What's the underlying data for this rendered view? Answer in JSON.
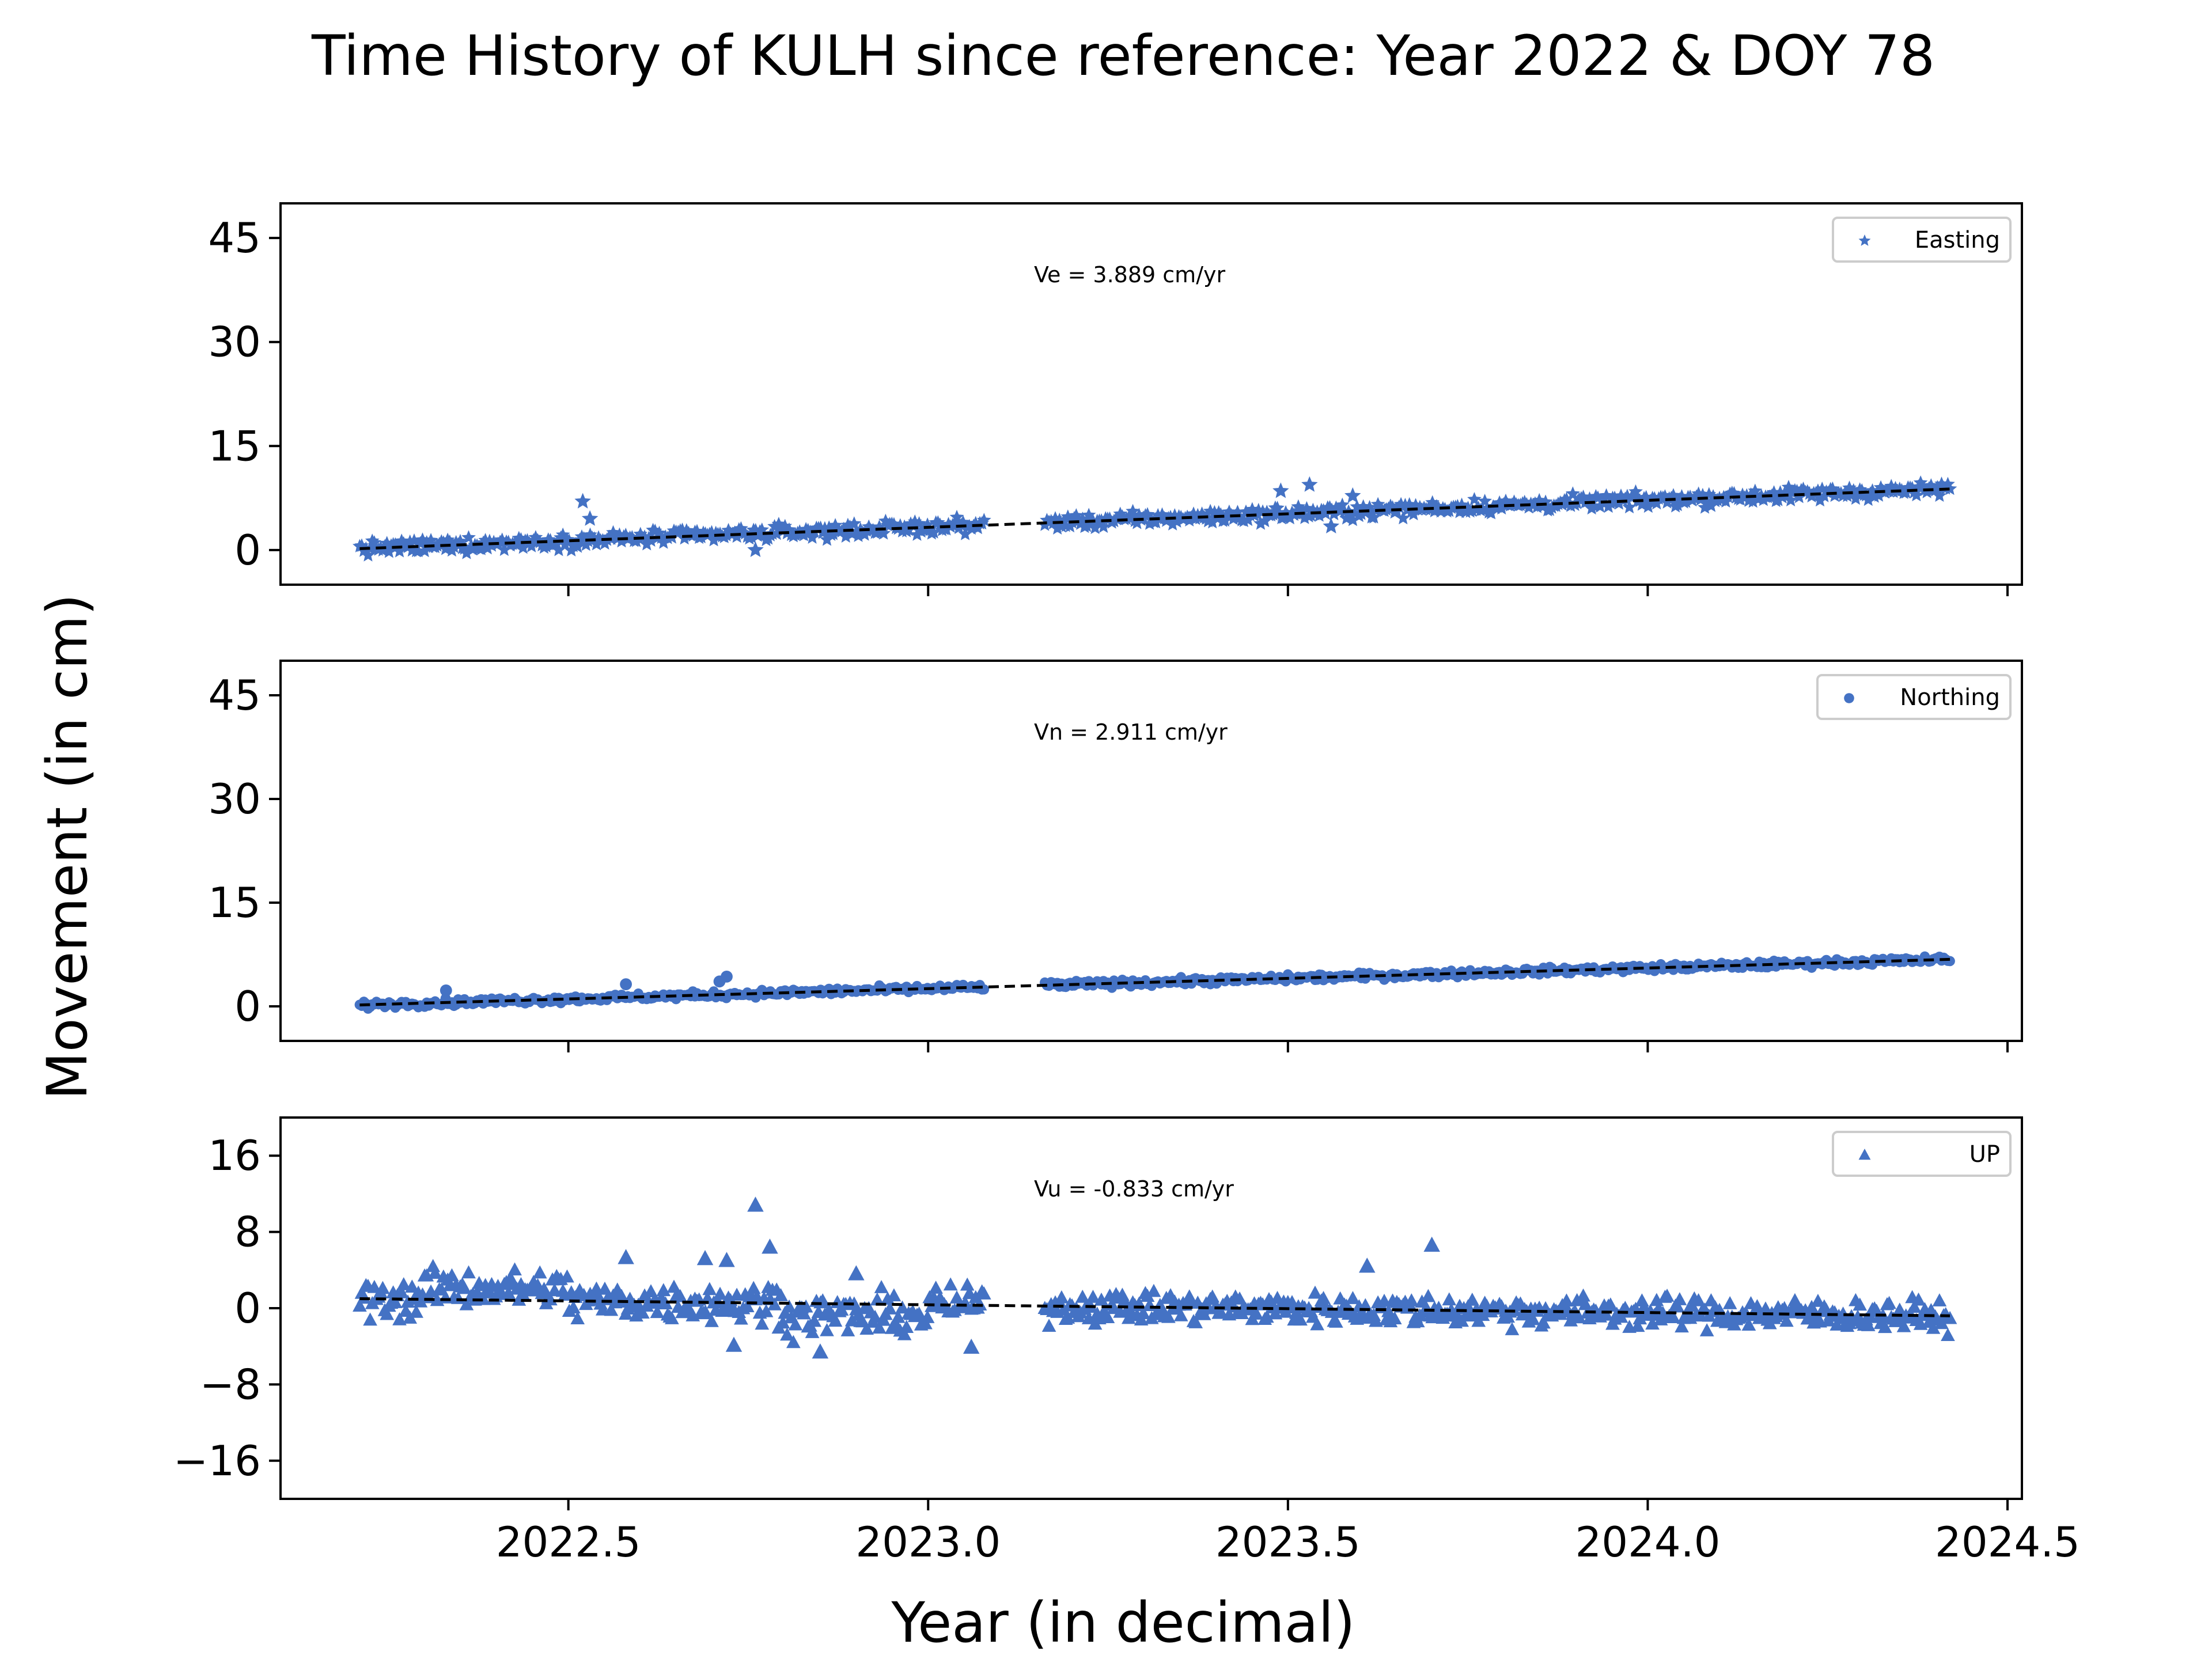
{
  "chart_data": {
    "type": "scatter",
    "title": "Time History of KULH since reference: Year 2022 & DOY 78",
    "xlabel": "Year (in decimal)",
    "ylabel": "Movement (in cm)",
    "xlim": [
      2022.1,
      2024.52
    ],
    "xticks": [
      2022.5,
      2023.0,
      2023.5,
      2024.0,
      2024.5
    ],
    "xtick_labels": [
      "2022.5",
      "2023.0",
      "2023.5",
      "2024.0",
      "2024.5"
    ],
    "grid": false,
    "marker_color": "#4472c4",
    "trend_color": "#000000",
    "data_x_range": [
      2022.21,
      2024.42
    ],
    "gap_x_range": [
      2023.08,
      2023.16
    ],
    "panels": [
      {
        "id": "easting",
        "legend": "Easting",
        "marker": "star",
        "annotation": "Ve =  3.889 cm/yr",
        "ylim": [
          -5,
          50
        ],
        "yticks": [
          0,
          15,
          30,
          45
        ],
        "ytick_labels": [
          "0",
          "15",
          "30",
          "45"
        ],
        "trend": [
          [
            2022.21,
            0.2
          ],
          [
            2024.42,
            8.8
          ]
        ],
        "noise": 1.0,
        "outliers": [
          [
            2022.52,
            7.0
          ],
          [
            2022.53,
            4.5
          ],
          [
            2023.49,
            8.5
          ],
          [
            2023.53,
            9.4
          ],
          [
            2023.59,
            7.8
          ],
          [
            2022.76,
            0.0
          ],
          [
            2023.56,
            3.4
          ]
        ]
      },
      {
        "id": "northing",
        "legend": "Northing",
        "marker": "circle",
        "annotation": "Vn =  2.911 cm/yr",
        "ylim": [
          -5,
          50
        ],
        "yticks": [
          0,
          15,
          30,
          45
        ],
        "ytick_labels": [
          "0",
          "15",
          "30",
          "45"
        ],
        "trend": [
          [
            2022.21,
            0.2
          ],
          [
            2024.42,
            6.8
          ]
        ],
        "noise": 0.5,
        "outliers": [
          [
            2022.72,
            4.3
          ],
          [
            2022.71,
            3.6
          ],
          [
            2022.58,
            3.2
          ],
          [
            2022.33,
            2.3
          ]
        ]
      },
      {
        "id": "up",
        "legend": "UP",
        "marker": "triangle",
        "annotation": "Vu = -0.833 cm/yr",
        "ylim": [
          -20,
          20
        ],
        "yticks": [
          -16,
          -8,
          0,
          8,
          16
        ],
        "ytick_labels": [
          "−16",
          "−8",
          "0",
          "8",
          "16"
        ],
        "trend": [
          [
            2022.21,
            1.0
          ],
          [
            2024.42,
            -0.8
          ]
        ],
        "noise": 1.6,
        "outliers": [
          [
            2022.76,
            10.8
          ],
          [
            2022.78,
            6.4
          ],
          [
            2022.69,
            5.2
          ],
          [
            2022.72,
            5.0
          ],
          [
            2022.58,
            5.3
          ],
          [
            2022.9,
            3.6
          ],
          [
            2023.61,
            4.4
          ],
          [
            2023.7,
            6.6
          ],
          [
            2022.73,
            -3.9
          ],
          [
            2022.85,
            -4.6
          ],
          [
            2023.06,
            -4.1
          ]
        ]
      }
    ]
  }
}
